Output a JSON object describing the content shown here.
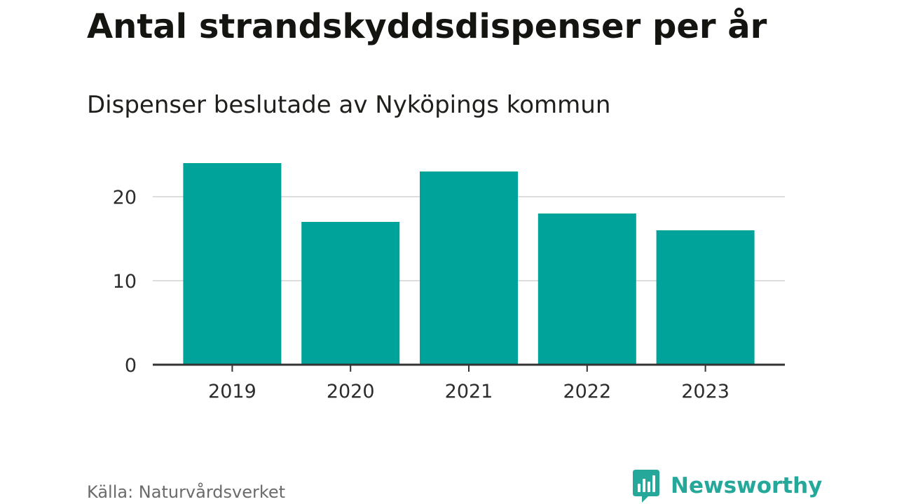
{
  "header": {
    "title": "Antal strandskyddsdispenser per år",
    "subtitle": "Dispenser beslutade av Nyköpings kommun"
  },
  "footer": {
    "source": "Källa: Naturvårdsverket",
    "brand": "Newsworthy"
  },
  "colors": {
    "bar": "#00a39a",
    "grid": "#dddddd",
    "axis": "#333333",
    "brand": "#25a89a"
  },
  "chart_data": {
    "type": "bar",
    "title": "Antal strandskyddsdispenser per år",
    "subtitle": "Dispenser beslutade av Nyköpings kommun",
    "categories": [
      "2019",
      "2020",
      "2021",
      "2022",
      "2023"
    ],
    "values": [
      24,
      17,
      23,
      18,
      16
    ],
    "xlabel": "",
    "ylabel": "",
    "ylim": [
      0,
      28
    ],
    "yticks": [
      0,
      10,
      20
    ],
    "grid": true,
    "legend": "none"
  }
}
